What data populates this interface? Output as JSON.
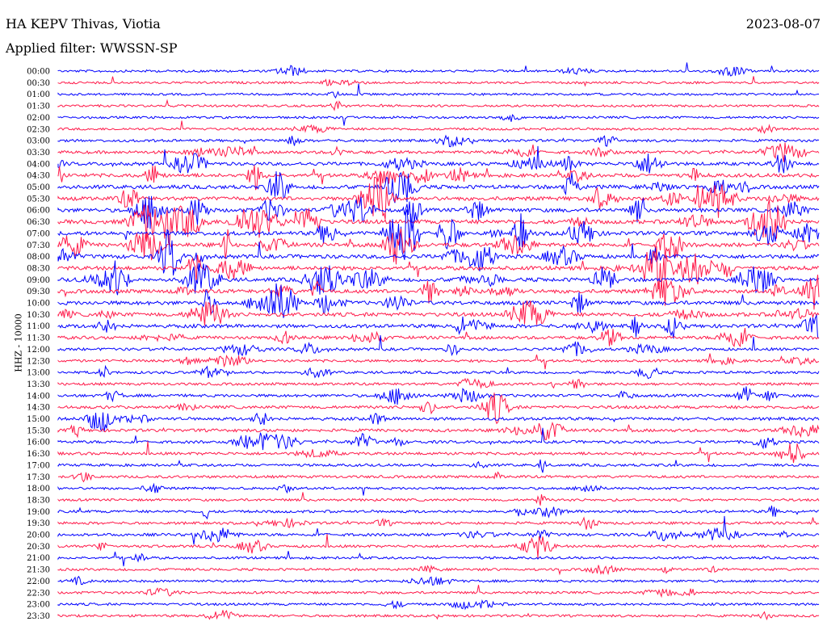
{
  "header": {
    "station": "HA KEPV Thivas, Viotia",
    "date": "2023-08-07",
    "filter": "Applied filter: WWSSN-SP"
  },
  "chart_data": {
    "type": "line",
    "title": "HA KEPV Thivas, Viotia",
    "ylabel": "HHZ - 10000",
    "rows": [
      "00:00",
      "00:30",
      "01:00",
      "01:30",
      "02:00",
      "02:30",
      "03:00",
      "03:30",
      "04:00",
      "04:30",
      "05:00",
      "05:30",
      "06:00",
      "06:30",
      "07:00",
      "07:30",
      "08:00",
      "08:30",
      "09:00",
      "09:30",
      "10:00",
      "10:30",
      "11:00",
      "11:30",
      "12:00",
      "12:30",
      "13:00",
      "13:30",
      "14:00",
      "14:30",
      "15:00",
      "15:30",
      "16:00",
      "16:30",
      "17:00",
      "17:30",
      "18:00",
      "18:30",
      "19:00",
      "19:30",
      "20:00",
      "20:30",
      "21:00",
      "21:30",
      "22:00",
      "22:30",
      "23:00",
      "23:30"
    ],
    "series_colors": [
      "#0000ff",
      "#ff1a4a"
    ],
    "row_activity": [
      0.15,
      0.12,
      0.12,
      0.12,
      0.15,
      0.2,
      0.3,
      0.5,
      0.7,
      0.8,
      0.9,
      0.9,
      0.9,
      1.0,
      1.0,
      1.0,
      1.0,
      0.9,
      0.9,
      0.9,
      0.9,
      0.9,
      0.8,
      0.6,
      0.4,
      0.3,
      0.3,
      0.3,
      0.4,
      0.5,
      0.5,
      0.5,
      0.4,
      0.4,
      0.3,
      0.3,
      0.2,
      0.2,
      0.3,
      0.3,
      0.4,
      0.3,
      0.2,
      0.2,
      0.2,
      0.2,
      0.2,
      0.2
    ],
    "grid": false
  }
}
